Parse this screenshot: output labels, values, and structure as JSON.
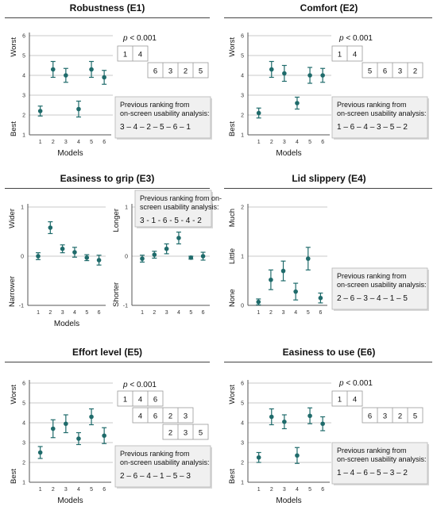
{
  "chart_data": [
    {
      "id": "E1",
      "title": "Robustness (E1)",
      "type": "scatter",
      "x": [
        1,
        2,
        3,
        4,
        5,
        6
      ],
      "xlabel": "Models",
      "ylim": [
        1,
        6
      ],
      "yticks": [
        1,
        2,
        3,
        4,
        5,
        6
      ],
      "ylabel_top": "Worst",
      "ylabel_bottom": "Best",
      "mean": [
        2.2,
        4.3,
        4.0,
        2.3,
        4.3,
        3.9
      ],
      "error": [
        0.25,
        0.4,
        0.35,
        0.4,
        0.4,
        0.35
      ],
      "pvalue": "p < 0.001",
      "groups": [
        {
          "row": 0,
          "items": [
            {
              "col": 0,
              "text": "1"
            },
            {
              "col": 1,
              "text": "4"
            }
          ]
        },
        {
          "row": 1,
          "items": [
            {
              "col": 2,
              "text": "6"
            },
            {
              "col": 3,
              "text": "3"
            },
            {
              "col": 4,
              "text": "2"
            },
            {
              "col": 5,
              "text": "5"
            }
          ]
        }
      ],
      "note": {
        "line1": "Previous ranking from",
        "line2": "on-screen usability analysis:",
        "ranking": "3 – 4 – 2 – 5 – 6 – 1"
      }
    },
    {
      "id": "E2",
      "title": "Comfort (E2)",
      "type": "scatter",
      "x": [
        1,
        2,
        3,
        4,
        5,
        6
      ],
      "xlabel": "Models",
      "ylim": [
        1,
        6
      ],
      "yticks": [
        1,
        2,
        3,
        4,
        5,
        6
      ],
      "ylabel_top": "Worst",
      "ylabel_bottom": "Best",
      "mean": [
        2.1,
        4.3,
        4.1,
        2.6,
        4.0,
        4.0
      ],
      "error": [
        0.25,
        0.4,
        0.4,
        0.3,
        0.4,
        0.35
      ],
      "pvalue": "p < 0.001",
      "groups": [
        {
          "row": 0,
          "items": [
            {
              "col": 0,
              "text": "1"
            },
            {
              "col": 1,
              "text": "4"
            }
          ]
        },
        {
          "row": 1,
          "items": [
            {
              "col": 2,
              "text": "5"
            },
            {
              "col": 3,
              "text": "6"
            },
            {
              "col": 4,
              "text": "3"
            },
            {
              "col": 5,
              "text": "2"
            }
          ]
        }
      ],
      "note": {
        "line1": "Previous ranking from",
        "line2": "on-screen usability analysis:",
        "ranking": "1 – 6 – 4 – 3 – 5 – 2"
      }
    },
    {
      "id": "E3",
      "title": "Easiness to grip (E3)",
      "type": "scatter",
      "subplots": [
        {
          "x": [
            1,
            2,
            3,
            4,
            5,
            6
          ],
          "xlabel": "Models",
          "ylim": [
            -1,
            1
          ],
          "yticks": [
            -1,
            0,
            1
          ],
          "ylabel_top": "Wider",
          "ylabel_bottom": "Narrower",
          "mean": [
            0.0,
            0.58,
            0.15,
            0.08,
            -0.03,
            -0.08
          ],
          "error": [
            0.07,
            0.12,
            0.08,
            0.1,
            0.06,
            0.1
          ]
        },
        {
          "x": [
            1,
            2,
            3,
            4,
            5,
            6
          ],
          "ylim": [
            -1,
            1
          ],
          "yticks": [
            -1,
            0,
            1
          ],
          "ylabel_top": "Longer",
          "ylabel_bottom": "Shorter",
          "mean": [
            -0.05,
            0.03,
            0.15,
            0.37,
            -0.03,
            0.0
          ],
          "error": [
            0.07,
            0.07,
            0.1,
            0.12,
            0.03,
            0.08
          ]
        }
      ],
      "note": {
        "line1": "Previous ranking from on-",
        "line2": "screen usability analysis:",
        "ranking": "3 - 1 - 6 - 5 - 4 - 2"
      }
    },
    {
      "id": "E4",
      "title": "Lid slippery (E4)",
      "type": "scatter",
      "x": [
        1,
        2,
        3,
        4,
        5,
        6
      ],
      "ylim": [
        0,
        2
      ],
      "yticks": [
        0,
        1,
        2
      ],
      "ylabel_top": "Much",
      "ylabel_middle": "Little",
      "ylabel_bottom": "None",
      "mean": [
        0.07,
        0.52,
        0.7,
        0.28,
        0.95,
        0.15
      ],
      "error": [
        0.06,
        0.2,
        0.2,
        0.17,
        0.23,
        0.1
      ],
      "note": {
        "line1": "Previous ranking from",
        "line2": "on-screen usability analysis:",
        "ranking": "2 – 6 – 3 – 4 – 1 – 5"
      }
    },
    {
      "id": "E5",
      "title": "Effort level (E5)",
      "type": "scatter",
      "x": [
        1,
        2,
        3,
        4,
        5,
        6
      ],
      "xlabel": "Models",
      "ylim": [
        1,
        6
      ],
      "yticks": [
        1,
        2,
        3,
        4,
        5,
        6
      ],
      "ylabel_top": "Worst",
      "ylabel_bottom": "Best",
      "mean": [
        2.5,
        3.7,
        3.95,
        3.2,
        4.3,
        3.35
      ],
      "error": [
        0.3,
        0.45,
        0.45,
        0.3,
        0.4,
        0.4
      ],
      "pvalue": "p < 0.001",
      "groups": [
        {
          "row": 0,
          "items": [
            {
              "col": 0,
              "text": "1"
            },
            {
              "col": 1,
              "text": "4"
            },
            {
              "col": 2,
              "text": "6"
            }
          ]
        },
        {
          "row": 1,
          "items": [
            {
              "col": 1,
              "text": "4"
            },
            {
              "col": 2,
              "text": "6"
            },
            {
              "col": 3,
              "text": "2"
            },
            {
              "col": 4,
              "text": "3"
            }
          ]
        },
        {
          "row": 2,
          "items": [
            {
              "col": 3,
              "text": "2"
            },
            {
              "col": 4,
              "text": "3"
            },
            {
              "col": 5,
              "text": "5"
            }
          ]
        }
      ],
      "note": {
        "line1": "Previous ranking from",
        "line2": "on-screen usability analysis:",
        "ranking": "2 – 6 – 4 – 1 – 5 – 3"
      }
    },
    {
      "id": "E6",
      "title": "Easiness to use (E6)",
      "type": "scatter",
      "x": [
        1,
        2,
        3,
        4,
        5,
        6
      ],
      "xlabel": "Models",
      "ylim": [
        1,
        6
      ],
      "yticks": [
        1,
        2,
        3,
        4,
        5,
        6
      ],
      "ylabel_top": "Worst",
      "ylabel_bottom": "Best",
      "mean": [
        2.25,
        4.3,
        4.05,
        2.35,
        4.35,
        3.95
      ],
      "error": [
        0.25,
        0.4,
        0.35,
        0.4,
        0.4,
        0.35
      ],
      "pvalue": "p < 0.001",
      "groups": [
        {
          "row": 0,
          "items": [
            {
              "col": 0,
              "text": "1"
            },
            {
              "col": 1,
              "text": "4"
            }
          ]
        },
        {
          "row": 1,
          "items": [
            {
              "col": 2,
              "text": "6"
            },
            {
              "col": 3,
              "text": "3"
            },
            {
              "col": 4,
              "text": "2"
            },
            {
              "col": 5,
              "text": "5"
            }
          ]
        }
      ],
      "note": {
        "line1": "Previous ranking from",
        "line2": "on-screen usability analysis:",
        "ranking": "1 – 4 – 6 – 5 – 3 – 2"
      }
    }
  ],
  "colors": {
    "marker": "#1f6b6b",
    "grid": "#c8c8c8",
    "axis": "#555555",
    "note_bg": "#f0f0f0",
    "note_border": "#b5b5b5"
  }
}
